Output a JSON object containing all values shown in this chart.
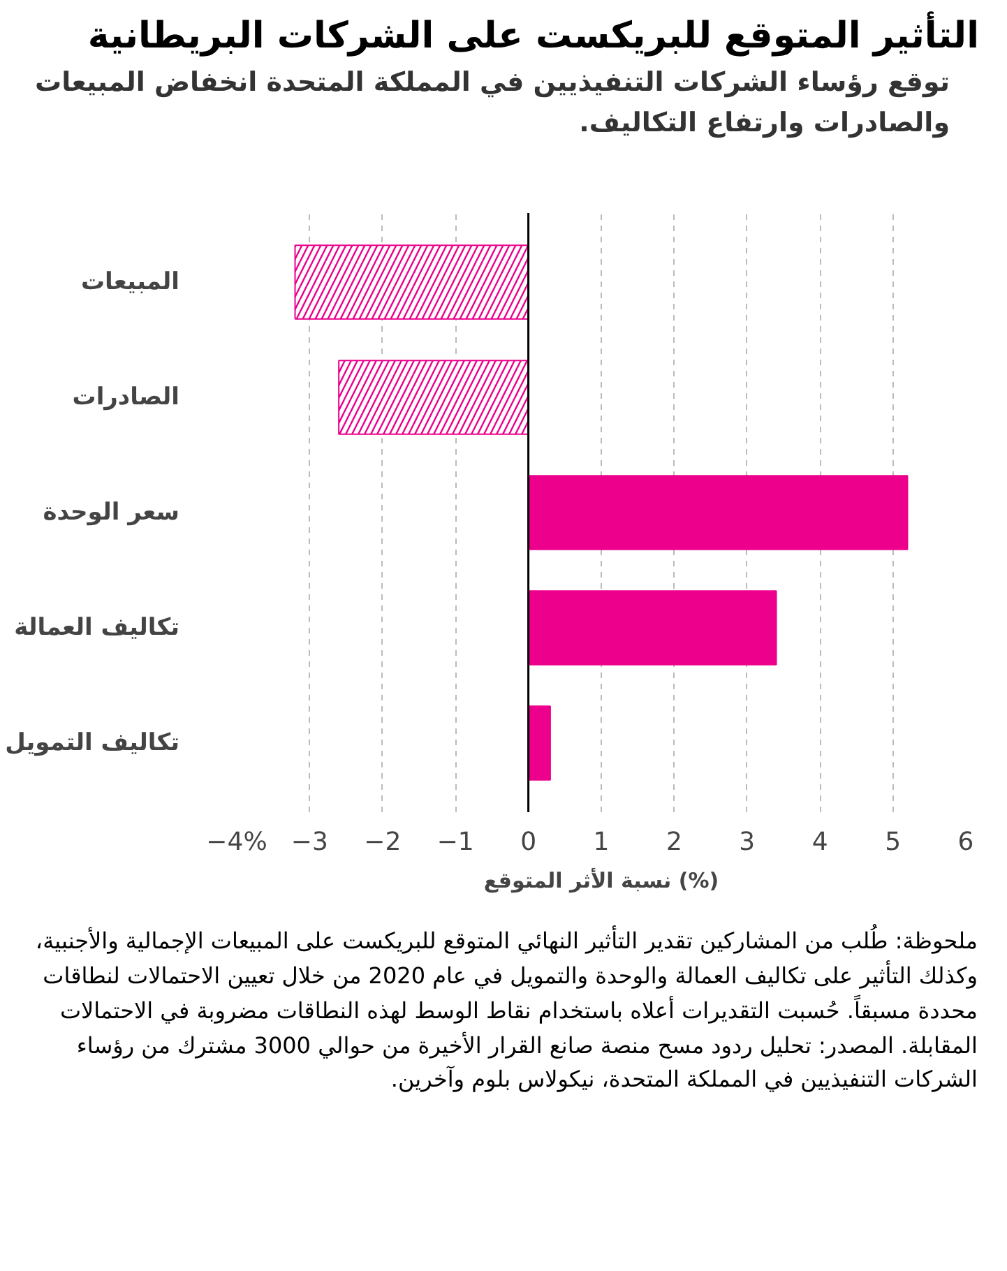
{
  "chart_data": {
    "type": "bar",
    "orientation": "horizontal",
    "title": "التأثير المتوقع للبريكست على الشركات البريطانية",
    "subtitle": "توقع رؤساء الشركات التنفيذيين في المملكة المتحدة انخفاض المبيعات والصادرات وارتفاع التكاليف.",
    "categories": [
      "المبيعات",
      "الصادرات",
      "سعر الوحدة",
      "تكاليف العمالة",
      "تكاليف التمويل"
    ],
    "values": [
      -3.2,
      -2.6,
      5.2,
      3.4,
      0.3
    ],
    "color": "#ec008c",
    "xlim": [
      -4,
      6
    ],
    "xticks": [
      {
        "value": -4,
        "label": "−4%"
      },
      {
        "value": -3,
        "label": "−3"
      },
      {
        "value": -2,
        "label": "−2"
      },
      {
        "value": -1,
        "label": "−1"
      },
      0,
      1,
      2,
      3,
      4,
      5,
      6
    ],
    "xlabel": "نسبة الأثر المتوقع (%)",
    "grid": "x",
    "ref_lines": [
      {
        "axis": "x",
        "value": 0,
        "color": "#000000"
      }
    ],
    "annotations": [
      "ملحوظة: طُلب من المشاركين تقدير التأثير النهائي المتوقع للبريكست على المبيعات الإجمالية والأجنبية، وكذلك التأثير على تكاليف العمالة والوحدة والتمويل في عام 2020 من خلال تعيين الاحتمالات لنطاقات محددة مسبقاً. حُسبت التقديرات أعلاه باستخدام نقاط الوسط لهذه النطاقات مضروبة في الاحتمالات المقابلة. المصدر: تحليل ردود مسح منصة صانع القرار الأخيرة من حوالي 3000 مشترك من رؤساء الشركات التنفيذيين في المملكة المتحدة، نيكولاس بلوم وآخرين."
    ]
  }
}
